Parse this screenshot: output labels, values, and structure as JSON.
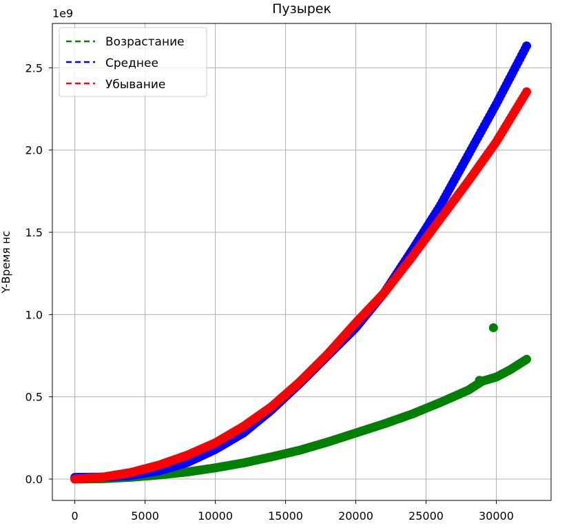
{
  "chart_data": {
    "type": "scatter",
    "title": "Пузырек",
    "xlabel": "",
    "ylabel": "Y-Время нс",
    "y_offset_label": "1e9",
    "xlim": [
      -1600,
      33900
    ],
    "ylim": [
      -0.13,
      2.77
    ],
    "x_ticks": [
      0,
      5000,
      10000,
      15000,
      20000,
      25000,
      30000
    ],
    "x_tick_labels": [
      "0",
      "5000",
      "10000",
      "15000",
      "20000",
      "25000",
      "30000"
    ],
    "y_ticks": [
      0,
      0.5,
      1.0,
      1.5,
      2.0,
      2.5
    ],
    "y_tick_labels": [
      "0.0",
      "0.5",
      "1.0",
      "1.5",
      "2.0",
      "2.5"
    ],
    "grid": true,
    "legend_position": "top-left",
    "series": [
      {
        "name": "Возрастание",
        "color": "#008000",
        "x": [
          0,
          2000,
          4000,
          6000,
          8000,
          10000,
          12000,
          14000,
          16000,
          18000,
          20000,
          22000,
          24000,
          26000,
          28000,
          29000,
          30000,
          31000,
          32200
        ],
        "y": [
          0.0,
          0.002,
          0.011,
          0.025,
          0.043,
          0.068,
          0.098,
          0.135,
          0.175,
          0.225,
          0.28,
          0.335,
          0.395,
          0.465,
          0.54,
          0.595,
          0.62,
          0.665,
          0.73
        ]
      },
      {
        "name": "Среднее",
        "color": "#0000ff",
        "x": [
          0,
          2000,
          4000,
          6000,
          8000,
          10000,
          12000,
          14000,
          16000,
          18000,
          20000,
          22000,
          24000,
          26000,
          28000,
          30000,
          32200
        ],
        "y": [
          0.01,
          0.012,
          0.022,
          0.05,
          0.1,
          0.18,
          0.28,
          0.42,
          0.58,
          0.75,
          0.92,
          1.13,
          1.39,
          1.66,
          1.97,
          2.28,
          2.64
        ]
      },
      {
        "name": "Убывание",
        "color": "#ff0000",
        "x": [
          0,
          2000,
          4000,
          6000,
          8000,
          10000,
          12000,
          14000,
          16000,
          18000,
          20000,
          22000,
          24000,
          26000,
          28000,
          30000,
          32200
        ],
        "y": [
          0.0,
          0.012,
          0.04,
          0.085,
          0.145,
          0.22,
          0.32,
          0.44,
          0.59,
          0.76,
          0.95,
          1.13,
          1.35,
          1.58,
          1.81,
          2.05,
          2.36
        ]
      }
    ],
    "outliers": [
      {
        "series": "Возрастание",
        "x": 29800,
        "y": 0.92
      },
      {
        "series": "Возрастание",
        "x": 28800,
        "y": 0.6
      }
    ]
  }
}
